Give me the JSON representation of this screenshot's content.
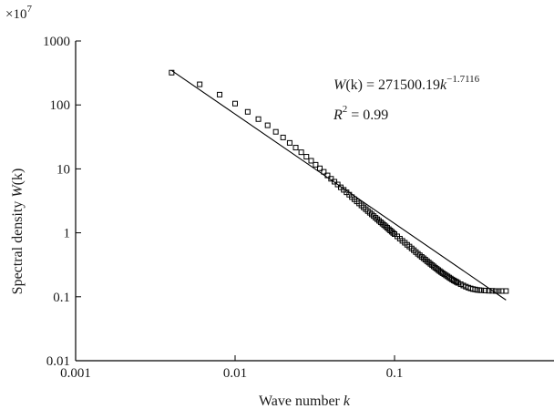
{
  "chart_data": {
    "type": "scatter",
    "title": "",
    "xlabel": {
      "text": "Wave number ",
      "var": "k"
    },
    "ylabel": {
      "text": "Spectral density ",
      "var": "W",
      "suffix": "(k)"
    },
    "y_multiplier": {
      "base": "×10",
      "exp": "7"
    },
    "x_scale": "log",
    "y_scale": "log",
    "xlim": [
      0.001,
      1
    ],
    "ylim": [
      0.01,
      1000
    ],
    "x_ticks": [
      {
        "value": 0.001,
        "label": "0.001"
      },
      {
        "value": 0.01,
        "label": "0.01"
      },
      {
        "value": 0.1,
        "label": "0.1"
      }
    ],
    "y_ticks": [
      {
        "value": 1000,
        "label": "1000"
      },
      {
        "value": 100,
        "label": "100"
      },
      {
        "value": 10,
        "label": "10"
      },
      {
        "value": 1,
        "label": "1"
      },
      {
        "value": 0.1,
        "label": "0.1"
      },
      {
        "value": 0.01,
        "label": "0.01"
      }
    ],
    "grid": false,
    "marker": "square",
    "points": [
      [
        0.004,
        320
      ],
      [
        0.006,
        210
      ],
      [
        0.008,
        145
      ],
      [
        0.01,
        105
      ],
      [
        0.012,
        78
      ],
      [
        0.014,
        60
      ],
      [
        0.016,
        48
      ],
      [
        0.018,
        38
      ],
      [
        0.02,
        31
      ],
      [
        0.022,
        25.5
      ],
      [
        0.024,
        21.5
      ],
      [
        0.026,
        18.2
      ],
      [
        0.028,
        15.5
      ],
      [
        0.03,
        13.4
      ],
      [
        0.032,
        11.6
      ],
      [
        0.034,
        10.2
      ],
      [
        0.036,
        9.0
      ],
      [
        0.038,
        7.9
      ],
      [
        0.04,
        7.0
      ],
      [
        0.042,
        6.3
      ],
      [
        0.044,
        5.7
      ],
      [
        0.046,
        5.15
      ],
      [
        0.048,
        4.7
      ],
      [
        0.05,
        4.3
      ],
      [
        0.052,
        3.95
      ],
      [
        0.054,
        3.62
      ],
      [
        0.056,
        3.35
      ],
      [
        0.058,
        3.1
      ],
      [
        0.06,
        2.88
      ],
      [
        0.062,
        2.68
      ],
      [
        0.064,
        2.5
      ],
      [
        0.066,
        2.34
      ],
      [
        0.068,
        2.19
      ],
      [
        0.07,
        2.06
      ],
      [
        0.072,
        1.94
      ],
      [
        0.074,
        1.83
      ],
      [
        0.076,
        1.72
      ],
      [
        0.078,
        1.63
      ],
      [
        0.08,
        1.54
      ],
      [
        0.082,
        1.46
      ],
      [
        0.084,
        1.39
      ],
      [
        0.086,
        1.32
      ],
      [
        0.088,
        1.26
      ],
      [
        0.09,
        1.2
      ],
      [
        0.092,
        1.14
      ],
      [
        0.094,
        1.09
      ],
      [
        0.096,
        1.04
      ],
      [
        0.098,
        0.995
      ],
      [
        0.1,
        0.955
      ],
      [
        0.104,
        0.88
      ],
      [
        0.108,
        0.81
      ],
      [
        0.112,
        0.75
      ],
      [
        0.116,
        0.7
      ],
      [
        0.12,
        0.65
      ],
      [
        0.124,
        0.61
      ],
      [
        0.128,
        0.57
      ],
      [
        0.132,
        0.535
      ],
      [
        0.136,
        0.5
      ],
      [
        0.14,
        0.47
      ],
      [
        0.144,
        0.445
      ],
      [
        0.148,
        0.42
      ],
      [
        0.152,
        0.4
      ],
      [
        0.156,
        0.38
      ],
      [
        0.16,
        0.36
      ],
      [
        0.164,
        0.343
      ],
      [
        0.168,
        0.327
      ],
      [
        0.172,
        0.312
      ],
      [
        0.176,
        0.298
      ],
      [
        0.18,
        0.285
      ],
      [
        0.184,
        0.273
      ],
      [
        0.188,
        0.262
      ],
      [
        0.192,
        0.252
      ],
      [
        0.196,
        0.243
      ],
      [
        0.2,
        0.234
      ],
      [
        0.205,
        0.225
      ],
      [
        0.21,
        0.216
      ],
      [
        0.215,
        0.208
      ],
      [
        0.22,
        0.2
      ],
      [
        0.225,
        0.193
      ],
      [
        0.23,
        0.186
      ],
      [
        0.235,
        0.18
      ],
      [
        0.24,
        0.175
      ],
      [
        0.245,
        0.17
      ],
      [
        0.25,
        0.165
      ],
      [
        0.26,
        0.157
      ],
      [
        0.27,
        0.15
      ],
      [
        0.28,
        0.144
      ],
      [
        0.29,
        0.139
      ],
      [
        0.3,
        0.135
      ],
      [
        0.31,
        0.132
      ],
      [
        0.32,
        0.13
      ],
      [
        0.33,
        0.128
      ],
      [
        0.34,
        0.127
      ],
      [
        0.35,
        0.126
      ],
      [
        0.37,
        0.125
      ],
      [
        0.39,
        0.124
      ],
      [
        0.41,
        0.124
      ],
      [
        0.43,
        0.123
      ],
      [
        0.45,
        0.123
      ],
      [
        0.47,
        0.123
      ],
      [
        0.5,
        0.123
      ]
    ],
    "fit": {
      "coefficient": 271500.19,
      "exponent": -1.7116,
      "x_range": [
        0.004,
        0.5
      ],
      "r_squared": 0.99
    },
    "annotations": {
      "equation": {
        "lhs_var": "W",
        "lhs_arg": "(k)",
        "eq": " = 271500.19",
        "var": "k",
        "exp": "−1.7116"
      },
      "r2": {
        "var": "R",
        "exp": "2",
        "eq": " = 0.99"
      }
    }
  }
}
